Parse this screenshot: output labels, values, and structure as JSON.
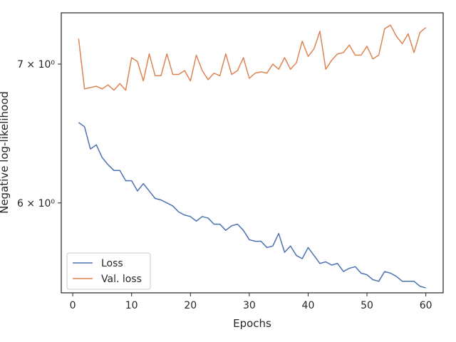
{
  "chart_data": {
    "type": "line",
    "xlabel": "Epochs",
    "ylabel": "Negative log-likelihood",
    "yscale": "log",
    "xlim": [
      -1.95,
      62.95
    ],
    "ylim": [
      5.43,
      7.41
    ],
    "x_ticks": [
      {
        "value": 0,
        "label": "0"
      },
      {
        "value": 10,
        "label": "10"
      },
      {
        "value": 20,
        "label": "20"
      },
      {
        "value": 30,
        "label": "30"
      },
      {
        "value": 40,
        "label": "40"
      },
      {
        "value": 50,
        "label": "50"
      },
      {
        "value": 60,
        "label": "60"
      }
    ],
    "y_ticks": [
      {
        "value": 6,
        "label": "6 × 10⁰"
      },
      {
        "value": 7,
        "label": "7 × 10⁰"
      }
    ],
    "grid": false,
    "legend_position": "lower-left",
    "series": [
      {
        "name": "Loss",
        "color": "#4c72b0",
        "x": [
          1,
          2,
          3,
          4,
          5,
          6,
          7,
          8,
          9,
          10,
          11,
          12,
          13,
          14,
          15,
          16,
          17,
          18,
          19,
          20,
          21,
          22,
          23,
          24,
          25,
          26,
          27,
          28,
          29,
          30,
          31,
          32,
          33,
          34,
          35,
          36,
          37,
          38,
          39,
          40,
          41,
          42,
          43,
          44,
          45,
          46,
          47,
          48,
          49,
          50,
          51,
          52,
          53,
          54,
          55,
          56,
          57,
          58,
          59,
          60
        ],
        "values": [
          6.56,
          6.53,
          6.37,
          6.4,
          6.31,
          6.26,
          6.22,
          6.22,
          6.15,
          6.15,
          6.08,
          6.13,
          6.08,
          6.03,
          6.02,
          6.0,
          5.98,
          5.94,
          5.92,
          5.91,
          5.88,
          5.91,
          5.9,
          5.86,
          5.86,
          5.82,
          5.85,
          5.86,
          5.82,
          5.76,
          5.75,
          5.75,
          5.71,
          5.72,
          5.8,
          5.68,
          5.72,
          5.66,
          5.64,
          5.71,
          5.66,
          5.61,
          5.62,
          5.6,
          5.61,
          5.56,
          5.58,
          5.59,
          5.55,
          5.54,
          5.51,
          5.5,
          5.56,
          5.55,
          5.53,
          5.5,
          5.5,
          5.5,
          5.47,
          5.46
        ]
      },
      {
        "name": "Val. loss",
        "color": "#dd8452",
        "x": [
          1,
          2,
          3,
          4,
          5,
          6,
          7,
          8,
          9,
          10,
          11,
          12,
          13,
          14,
          15,
          16,
          17,
          18,
          19,
          20,
          21,
          22,
          23,
          24,
          25,
          26,
          27,
          28,
          29,
          30,
          31,
          32,
          33,
          34,
          35,
          36,
          37,
          38,
          39,
          40,
          41,
          42,
          43,
          44,
          45,
          46,
          47,
          48,
          49,
          50,
          51,
          52,
          53,
          54,
          55,
          56,
          57,
          58,
          59,
          60
        ],
        "values": [
          7.2,
          6.81,
          6.82,
          6.83,
          6.81,
          6.84,
          6.8,
          6.85,
          6.8,
          7.05,
          7.02,
          6.87,
          7.08,
          6.91,
          6.91,
          7.08,
          6.92,
          6.92,
          6.95,
          6.87,
          7.07,
          6.95,
          6.88,
          6.93,
          6.91,
          7.08,
          6.92,
          6.95,
          7.05,
          6.89,
          6.93,
          6.94,
          6.93,
          7.0,
          6.96,
          7.05,
          6.96,
          7.01,
          7.18,
          7.06,
          7.12,
          7.26,
          6.96,
          7.03,
          7.08,
          7.09,
          7.15,
          7.07,
          7.07,
          7.14,
          7.04,
          7.07,
          7.28,
          7.31,
          7.22,
          7.16,
          7.24,
          7.09,
          7.25,
          7.29
        ]
      }
    ]
  }
}
